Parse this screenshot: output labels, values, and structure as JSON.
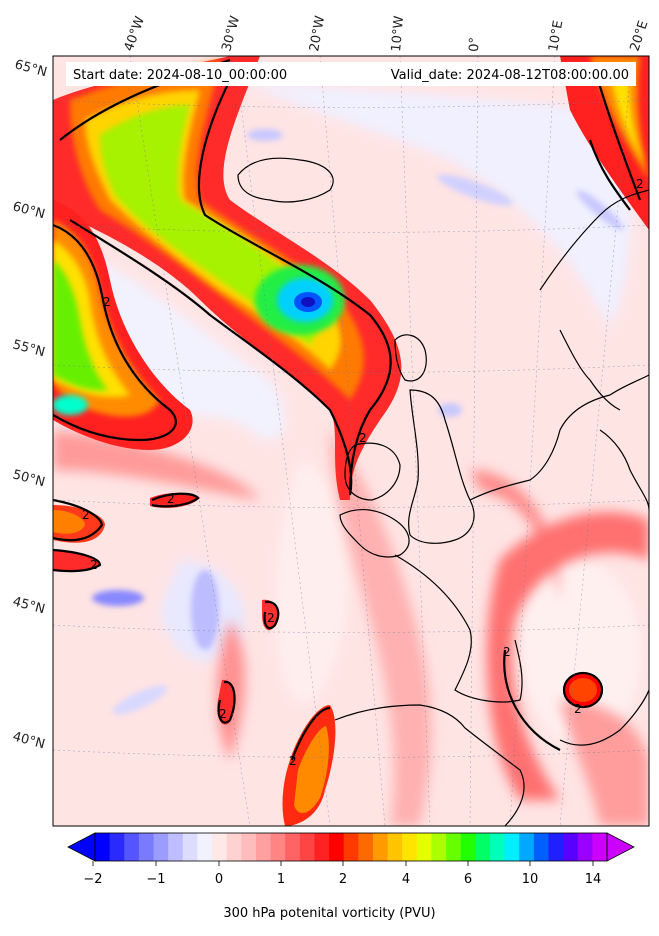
{
  "header": {
    "start_date": "Start date: 2024-08-10_00:00:00",
    "valid_date": "Valid_date: 2024-08-12T08:00:00.00"
  },
  "map": {
    "projection": "conic",
    "lon_labels": [
      "40°W",
      "30°W",
      "20°W",
      "10°W",
      "0°",
      "10°E",
      "20°E"
    ],
    "lat_labels": [
      "65°N",
      "60°N",
      "55°N",
      "50°N",
      "45°N",
      "40°N"
    ],
    "contour_label": "2",
    "field": "300 hPa potential vorticity"
  },
  "colorbar": {
    "title": "300 hPa potenital vorticity (PVU)",
    "tick_labels": [
      "−2",
      "−1",
      "0",
      "1",
      "2",
      "4",
      "6",
      "10",
      "14"
    ],
    "colors": [
      "#0000ff",
      "#2a2aff",
      "#5555ff",
      "#7a7aff",
      "#9c9cff",
      "#bdbdff",
      "#dcdcff",
      "#f2f2ff",
      "#ffe8e8",
      "#ffd2d2",
      "#ffbcbc",
      "#ffa0a0",
      "#ff8484",
      "#ff6464",
      "#ff4444",
      "#ff2222",
      "#ff0000",
      "#ff3a00",
      "#ff6a00",
      "#ff9a00",
      "#ffc400",
      "#ffe400",
      "#e4ff00",
      "#aaff00",
      "#66ff00",
      "#22ff00",
      "#00ff66",
      "#00ffbb",
      "#00eeff",
      "#00a8ff",
      "#0060ff",
      "#2020ff",
      "#5a00ff",
      "#9a00ff",
      "#cc00ff"
    ]
  }
}
